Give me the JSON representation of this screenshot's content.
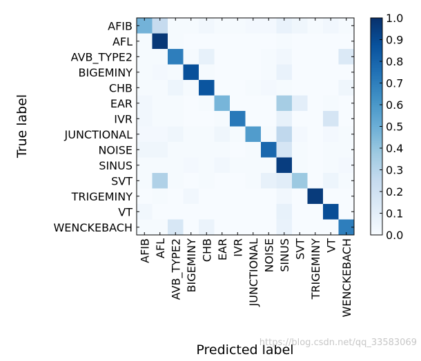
{
  "chart_data": {
    "type": "heatmap",
    "title": "",
    "xlabel": "Predicted label",
    "ylabel": "True label",
    "row_labels": [
      "AFIB",
      "AFL",
      "AVB_TYPE2",
      "BIGEMINY",
      "CHB",
      "EAR",
      "IVR",
      "JUNCTIONAL",
      "NOISE",
      "SINUS",
      "SVT",
      "TRIGEMINY",
      "VT",
      "WENCKEBACH"
    ],
    "col_labels": [
      "AFIB",
      "AFL",
      "AVB_TYPE2",
      "BIGEMINY",
      "CHB",
      "EAR",
      "IVR",
      "JUNCTIONAL",
      "NOISE",
      "SINUS",
      "SVT",
      "TRIGEMINY",
      "VT",
      "WENCKEBACH"
    ],
    "values": [
      [
        0.48,
        0.25,
        0.01,
        0.01,
        0.03,
        0.01,
        0.01,
        0.02,
        0.02,
        0.07,
        0.04,
        0.01,
        0.03,
        0.01
      ],
      [
        0.01,
        0.97,
        0.01,
        0.0,
        0.0,
        0.0,
        0.0,
        0.0,
        0.0,
        0.01,
        0.0,
        0.0,
        0.0,
        0.0
      ],
      [
        0.01,
        0.01,
        0.7,
        0.01,
        0.08,
        0.0,
        0.0,
        0.0,
        0.01,
        0.03,
        0.0,
        0.0,
        0.0,
        0.14
      ],
      [
        0.01,
        0.02,
        0.01,
        0.88,
        0.01,
        0.0,
        0.0,
        0.0,
        0.01,
        0.07,
        0.0,
        0.0,
        0.0,
        0.0
      ],
      [
        0.01,
        0.01,
        0.05,
        0.01,
        0.86,
        0.0,
        0.0,
        0.01,
        0.02,
        0.01,
        0.0,
        0.0,
        0.0,
        0.04
      ],
      [
        0.03,
        0.01,
        0.01,
        0.0,
        0.01,
        0.47,
        0.0,
        0.0,
        0.0,
        0.35,
        0.1,
        0.0,
        0.01,
        0.0
      ],
      [
        0.03,
        0.01,
        0.01,
        0.0,
        0.0,
        0.01,
        0.72,
        0.0,
        0.0,
        0.08,
        0.0,
        0.0,
        0.17,
        0.0
      ],
      [
        0.02,
        0.02,
        0.04,
        0.01,
        0.01,
        0.04,
        0.01,
        0.58,
        0.01,
        0.27,
        0.02,
        0.0,
        0.02,
        0.01
      ],
      [
        0.04,
        0.04,
        0.01,
        0.01,
        0.01,
        0.01,
        0.0,
        0.01,
        0.79,
        0.17,
        0.01,
        0.0,
        0.01,
        0.01
      ],
      [
        0.01,
        0.01,
        0.01,
        0.02,
        0.01,
        0.03,
        0.01,
        0.01,
        0.01,
        0.95,
        0.01,
        0.0,
        0.01,
        0.02
      ],
      [
        0.01,
        0.32,
        0.01,
        0.0,
        0.01,
        0.0,
        0.0,
        0.01,
        0.08,
        0.11,
        0.38,
        0.0,
        0.05,
        0.01
      ],
      [
        0.0,
        0.01,
        0.0,
        0.03,
        0.0,
        0.0,
        0.0,
        0.0,
        0.0,
        0.03,
        0.0,
        0.96,
        0.0,
        0.0
      ],
      [
        0.03,
        0.0,
        0.0,
        0.0,
        0.0,
        0.0,
        0.0,
        0.0,
        0.0,
        0.08,
        0.0,
        0.0,
        0.89,
        0.0
      ],
      [
        0.01,
        0.01,
        0.16,
        0.0,
        0.06,
        0.0,
        0.0,
        0.0,
        0.0,
        0.07,
        0.0,
        0.0,
        0.0,
        0.7
      ]
    ],
    "colorbar": {
      "min": 0.0,
      "max": 1.0,
      "ticks": [
        "0.0",
        "0.1",
        "0.2",
        "0.3",
        "0.4",
        "0.5",
        "0.6",
        "0.7",
        "0.8",
        "0.9",
        "1.0"
      ]
    },
    "colormap": "Blues",
    "colormap_stops": [
      "#f7fbff",
      "#deebf7",
      "#c6dbef",
      "#9ecae1",
      "#6baed6",
      "#4292c6",
      "#2171b5",
      "#08519c",
      "#08306b"
    ]
  },
  "watermark": "https://blog.csdn.net/qq_33583069"
}
